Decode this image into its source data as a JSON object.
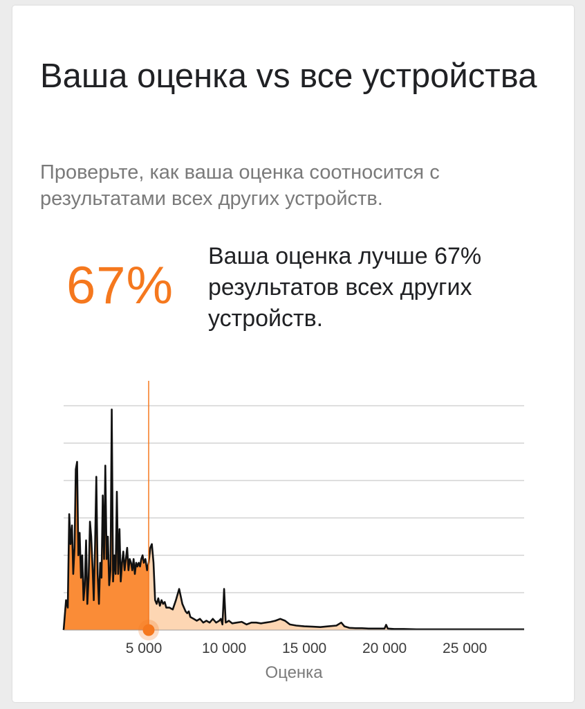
{
  "card": {
    "title": "Ваша оценка vs все устройства",
    "subtitle": "Проверьте, как ваша оценка соотносится с результатами всех других устройств.",
    "percentile": "67%",
    "percentile_text": "Ваша оценка лучше 67% результатов всех других устройств."
  },
  "colors": {
    "accent": "#f5781e",
    "fill_below": "#fa8c37",
    "fill_above": "#fdd6b3",
    "line": "#111111",
    "grid": "#bdbdbd"
  },
  "chart_data": {
    "type": "area",
    "title": "",
    "xlabel": "Оценка",
    "ylabel": "",
    "xlim": [
      0,
      28700
    ],
    "ylim": [
      0,
      6
    ],
    "xticks": [
      {
        "value": 5000,
        "label": "5 000"
      },
      {
        "value": 10000,
        "label": "10 000"
      },
      {
        "value": 15000,
        "label": "15 000"
      },
      {
        "value": 20000,
        "label": "20 000"
      },
      {
        "value": 25000,
        "label": "25 000"
      }
    ],
    "gridlines": [
      1,
      2,
      3,
      4,
      5,
      6
    ],
    "your_score": 5300,
    "series": [
      {
        "x": [
          0,
          150,
          260,
          350,
          430,
          520,
          600,
          680,
          760,
          840,
          920,
          1000,
          1080,
          1160,
          1240,
          1320,
          1400,
          1480,
          1560,
          1640,
          1720,
          1800,
          1880,
          1960,
          2040,
          2120,
          2200,
          2280,
          2360,
          2440,
          2520,
          2600,
          2680,
          2760,
          2840,
          2920,
          3000,
          3080,
          3160,
          3240,
          3320,
          3400,
          3480,
          3560,
          3640,
          3720,
          3800,
          3880,
          3960,
          4040,
          4120,
          4200,
          4280,
          4360,
          4440,
          4520,
          4600,
          4680,
          4760,
          4840,
          4920,
          5000,
          5100,
          5200,
          5300,
          5400,
          5500,
          5600,
          5700,
          5800,
          5900,
          6000,
          6100,
          6200,
          6300,
          6400,
          6600,
          6800,
          7000,
          7200,
          7400,
          7600,
          7700,
          7800,
          7900,
          8100,
          8300,
          8500,
          8700,
          8900,
          9100,
          9300,
          9500,
          9700,
          9800,
          9900,
          10000,
          10100,
          10300,
          10500,
          10800,
          11100,
          11400,
          11700,
          12000,
          12300,
          12600,
          12900,
          13200,
          13500,
          13800,
          14100,
          14500,
          15000,
          15500,
          16000,
          16500,
          17000,
          17300,
          17500,
          17800,
          18200,
          18600,
          19000,
          19500,
          20000,
          20100,
          20200,
          20600,
          21200,
          22000,
          23000,
          24000,
          25000,
          26000,
          27000,
          28000,
          28700
        ],
        "y": [
          0,
          0.8,
          0.6,
          3.1,
          2.3,
          2.8,
          1.5,
          2.2,
          4.3,
          4.5,
          2.0,
          2.6,
          1.4,
          2.0,
          0.8,
          1.2,
          2.4,
          0.7,
          1.4,
          2.9,
          2.5,
          1.7,
          0.8,
          2.3,
          4.1,
          1.5,
          0.7,
          1.8,
          1.4,
          3.6,
          1.9,
          4.4,
          1.9,
          2.5,
          1.2,
          1.6,
          5.9,
          1.3,
          2.0,
          1.5,
          3.7,
          1.5,
          2.7,
          1.3,
          1.8,
          2.1,
          1.6,
          1.9,
          2.2,
          1.6,
          1.9,
          1.8,
          1.6,
          1.9,
          1.5,
          1.8,
          1.7,
          1.8,
          1.7,
          1.9,
          2.0,
          1.8,
          1.9,
          1.6,
          1.8,
          2.2,
          2.3,
          1.8,
          0.8,
          0.7,
          0.85,
          0.65,
          0.8,
          0.7,
          0.75,
          0.6,
          0.6,
          0.55,
          0.8,
          1.1,
          0.7,
          0.5,
          0.45,
          0.5,
          0.35,
          0.3,
          0.25,
          0.3,
          0.2,
          0.25,
          0.2,
          0.3,
          0.2,
          0.25,
          0.3,
          0.15,
          1.1,
          0.2,
          0.25,
          0.18,
          0.2,
          0.22,
          0.15,
          0.2,
          0.2,
          0.18,
          0.2,
          0.22,
          0.25,
          0.3,
          0.25,
          0.15,
          0.12,
          0.1,
          0.09,
          0.08,
          0.1,
          0.12,
          0.2,
          0.1,
          0.06,
          0.05,
          0.05,
          0.04,
          0.04,
          0.04,
          0.14,
          0.04,
          0.03,
          0.03,
          0.02,
          0.02,
          0.02,
          0.02,
          0.02,
          0.02,
          0.02,
          0.02
        ]
      }
    ]
  }
}
